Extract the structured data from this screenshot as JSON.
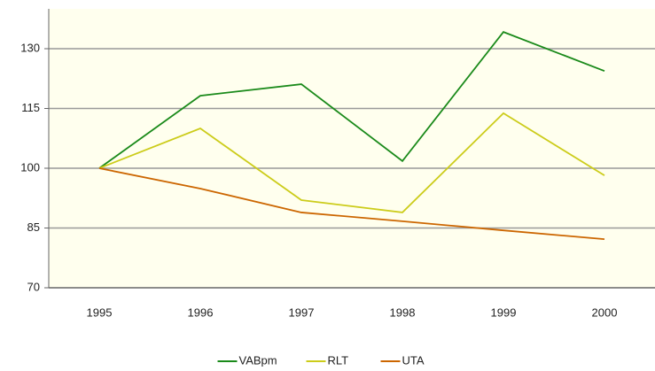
{
  "chart_data": {
    "type": "line",
    "categories": [
      "1995",
      "1996",
      "1997",
      "1998",
      "1999",
      "2000"
    ],
    "series": [
      {
        "name": "VABpm",
        "color": "#1a8a1a",
        "values": [
          100,
          118.2,
          121.1,
          101.8,
          134.2,
          124.4
        ]
      },
      {
        "name": "RLT",
        "color": "#cccc1a",
        "values": [
          100,
          110,
          92,
          88.9,
          113.8,
          98.2
        ]
      },
      {
        "name": "UTA",
        "color": "#cc6600",
        "values": [
          100,
          94.9,
          88.9,
          86.7,
          84.4,
          82.2
        ]
      }
    ],
    "ylim": [
      70,
      140
    ],
    "yticks": [
      70,
      85,
      100,
      115,
      130
    ],
    "grid": true,
    "legend": "bottom"
  }
}
